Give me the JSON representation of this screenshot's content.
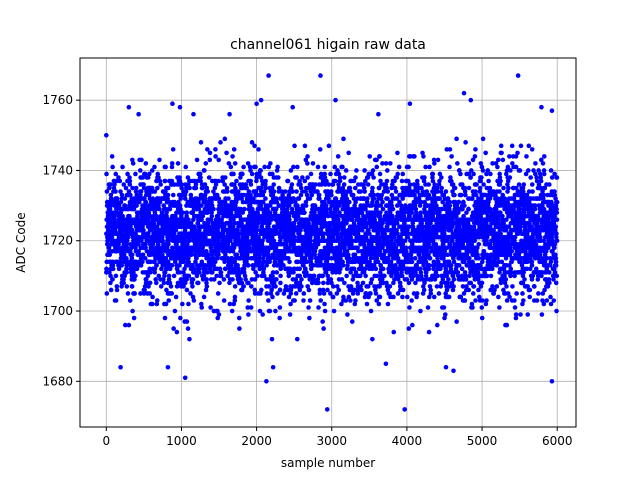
{
  "chart_data": {
    "type": "scatter",
    "title": "channel061 higain raw data",
    "xlabel": "sample number",
    "ylabel": "ADC Code",
    "xlim": [
      -350,
      6250
    ],
    "ylim": [
      1667,
      1772
    ],
    "xticks": [
      0,
      1000,
      2000,
      3000,
      4000,
      5000,
      6000
    ],
    "yticks": [
      1680,
      1700,
      1720,
      1740,
      1760
    ],
    "grid": true,
    "marker_color": "#0000ff",
    "n_samples": 6000,
    "bulk_range": [
      1702,
      1744
    ],
    "center_value": 1722,
    "outliers": [
      {
        "x": 0,
        "y": 1750
      },
      {
        "x": 190,
        "y": 1684
      },
      {
        "x": 300,
        "y": 1758
      },
      {
        "x": 430,
        "y": 1756
      },
      {
        "x": 820,
        "y": 1684
      },
      {
        "x": 880,
        "y": 1759
      },
      {
        "x": 980,
        "y": 1758
      },
      {
        "x": 1050,
        "y": 1681
      },
      {
        "x": 1160,
        "y": 1756
      },
      {
        "x": 1640,
        "y": 1756
      },
      {
        "x": 2000,
        "y": 1759
      },
      {
        "x": 2060,
        "y": 1760
      },
      {
        "x": 2130,
        "y": 1680
      },
      {
        "x": 2160,
        "y": 1767
      },
      {
        "x": 2220,
        "y": 1684
      },
      {
        "x": 2480,
        "y": 1758
      },
      {
        "x": 2850,
        "y": 1767
      },
      {
        "x": 2940,
        "y": 1672
      },
      {
        "x": 3050,
        "y": 1760
      },
      {
        "x": 3620,
        "y": 1756
      },
      {
        "x": 3720,
        "y": 1685
      },
      {
        "x": 3970,
        "y": 1672
      },
      {
        "x": 4040,
        "y": 1759
      },
      {
        "x": 4520,
        "y": 1684
      },
      {
        "x": 4620,
        "y": 1683
      },
      {
        "x": 4760,
        "y": 1762
      },
      {
        "x": 4850,
        "y": 1760
      },
      {
        "x": 5480,
        "y": 1767
      },
      {
        "x": 5790,
        "y": 1758
      },
      {
        "x": 5930,
        "y": 1757
      },
      {
        "x": 5930,
        "y": 1680
      }
    ]
  }
}
